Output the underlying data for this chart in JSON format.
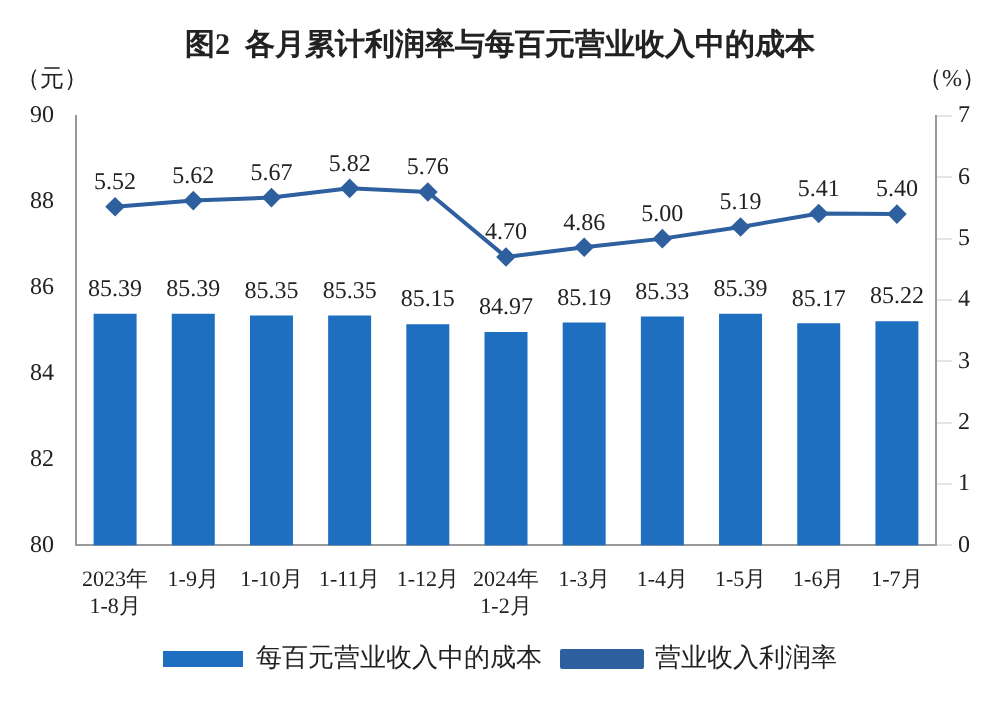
{
  "chart_data": {
    "type": "bar",
    "title": "图2  各月累计利润率与每百元营业收入中的成本",
    "ylabel": "（元）",
    "y2label": "（%）",
    "categories": [
      "2023年\n1-8月",
      "1-9月",
      "1-10月",
      "1-11月",
      "1-12月",
      "2024年\n1-2月",
      "1-3月",
      "1-4月",
      "1-5月",
      "1-6月",
      "1-7月"
    ],
    "series": [
      {
        "name": "每百元营业收入中的成本",
        "color": "#1f6fc0",
        "values": [
          85.39,
          85.39,
          85.35,
          85.35,
          85.15,
          84.97,
          85.19,
          85.33,
          85.39,
          85.17,
          85.22
        ],
        "value_labels": [
          "85.39",
          "85.39",
          "85.35",
          "85.35",
          "85.15",
          "84.97",
          "85.19",
          "85.33",
          "85.39",
          "85.17",
          "85.22"
        ]
      },
      {
        "name": "营业收入利润率",
        "type": "line",
        "axis": "y2",
        "color": "#2e5f9e",
        "marker": "diamond",
        "values": [
          5.52,
          5.62,
          5.67,
          5.82,
          5.76,
          4.7,
          4.86,
          5.0,
          5.19,
          5.41,
          5.4
        ],
        "value_labels": [
          "5.52",
          "5.62",
          "5.67",
          "5.82",
          "5.76",
          "4.70",
          "4.86",
          "5.00",
          "5.19",
          "5.41",
          "5.40"
        ]
      }
    ],
    "ylim": [
      80,
      90
    ],
    "yticks": [
      80,
      82,
      84,
      86,
      88,
      90
    ],
    "y2lim": [
      0,
      7
    ],
    "y2ticks": [
      0,
      1,
      2,
      3,
      4,
      5,
      6,
      7
    ],
    "grid": false,
    "legend": "bottom"
  }
}
